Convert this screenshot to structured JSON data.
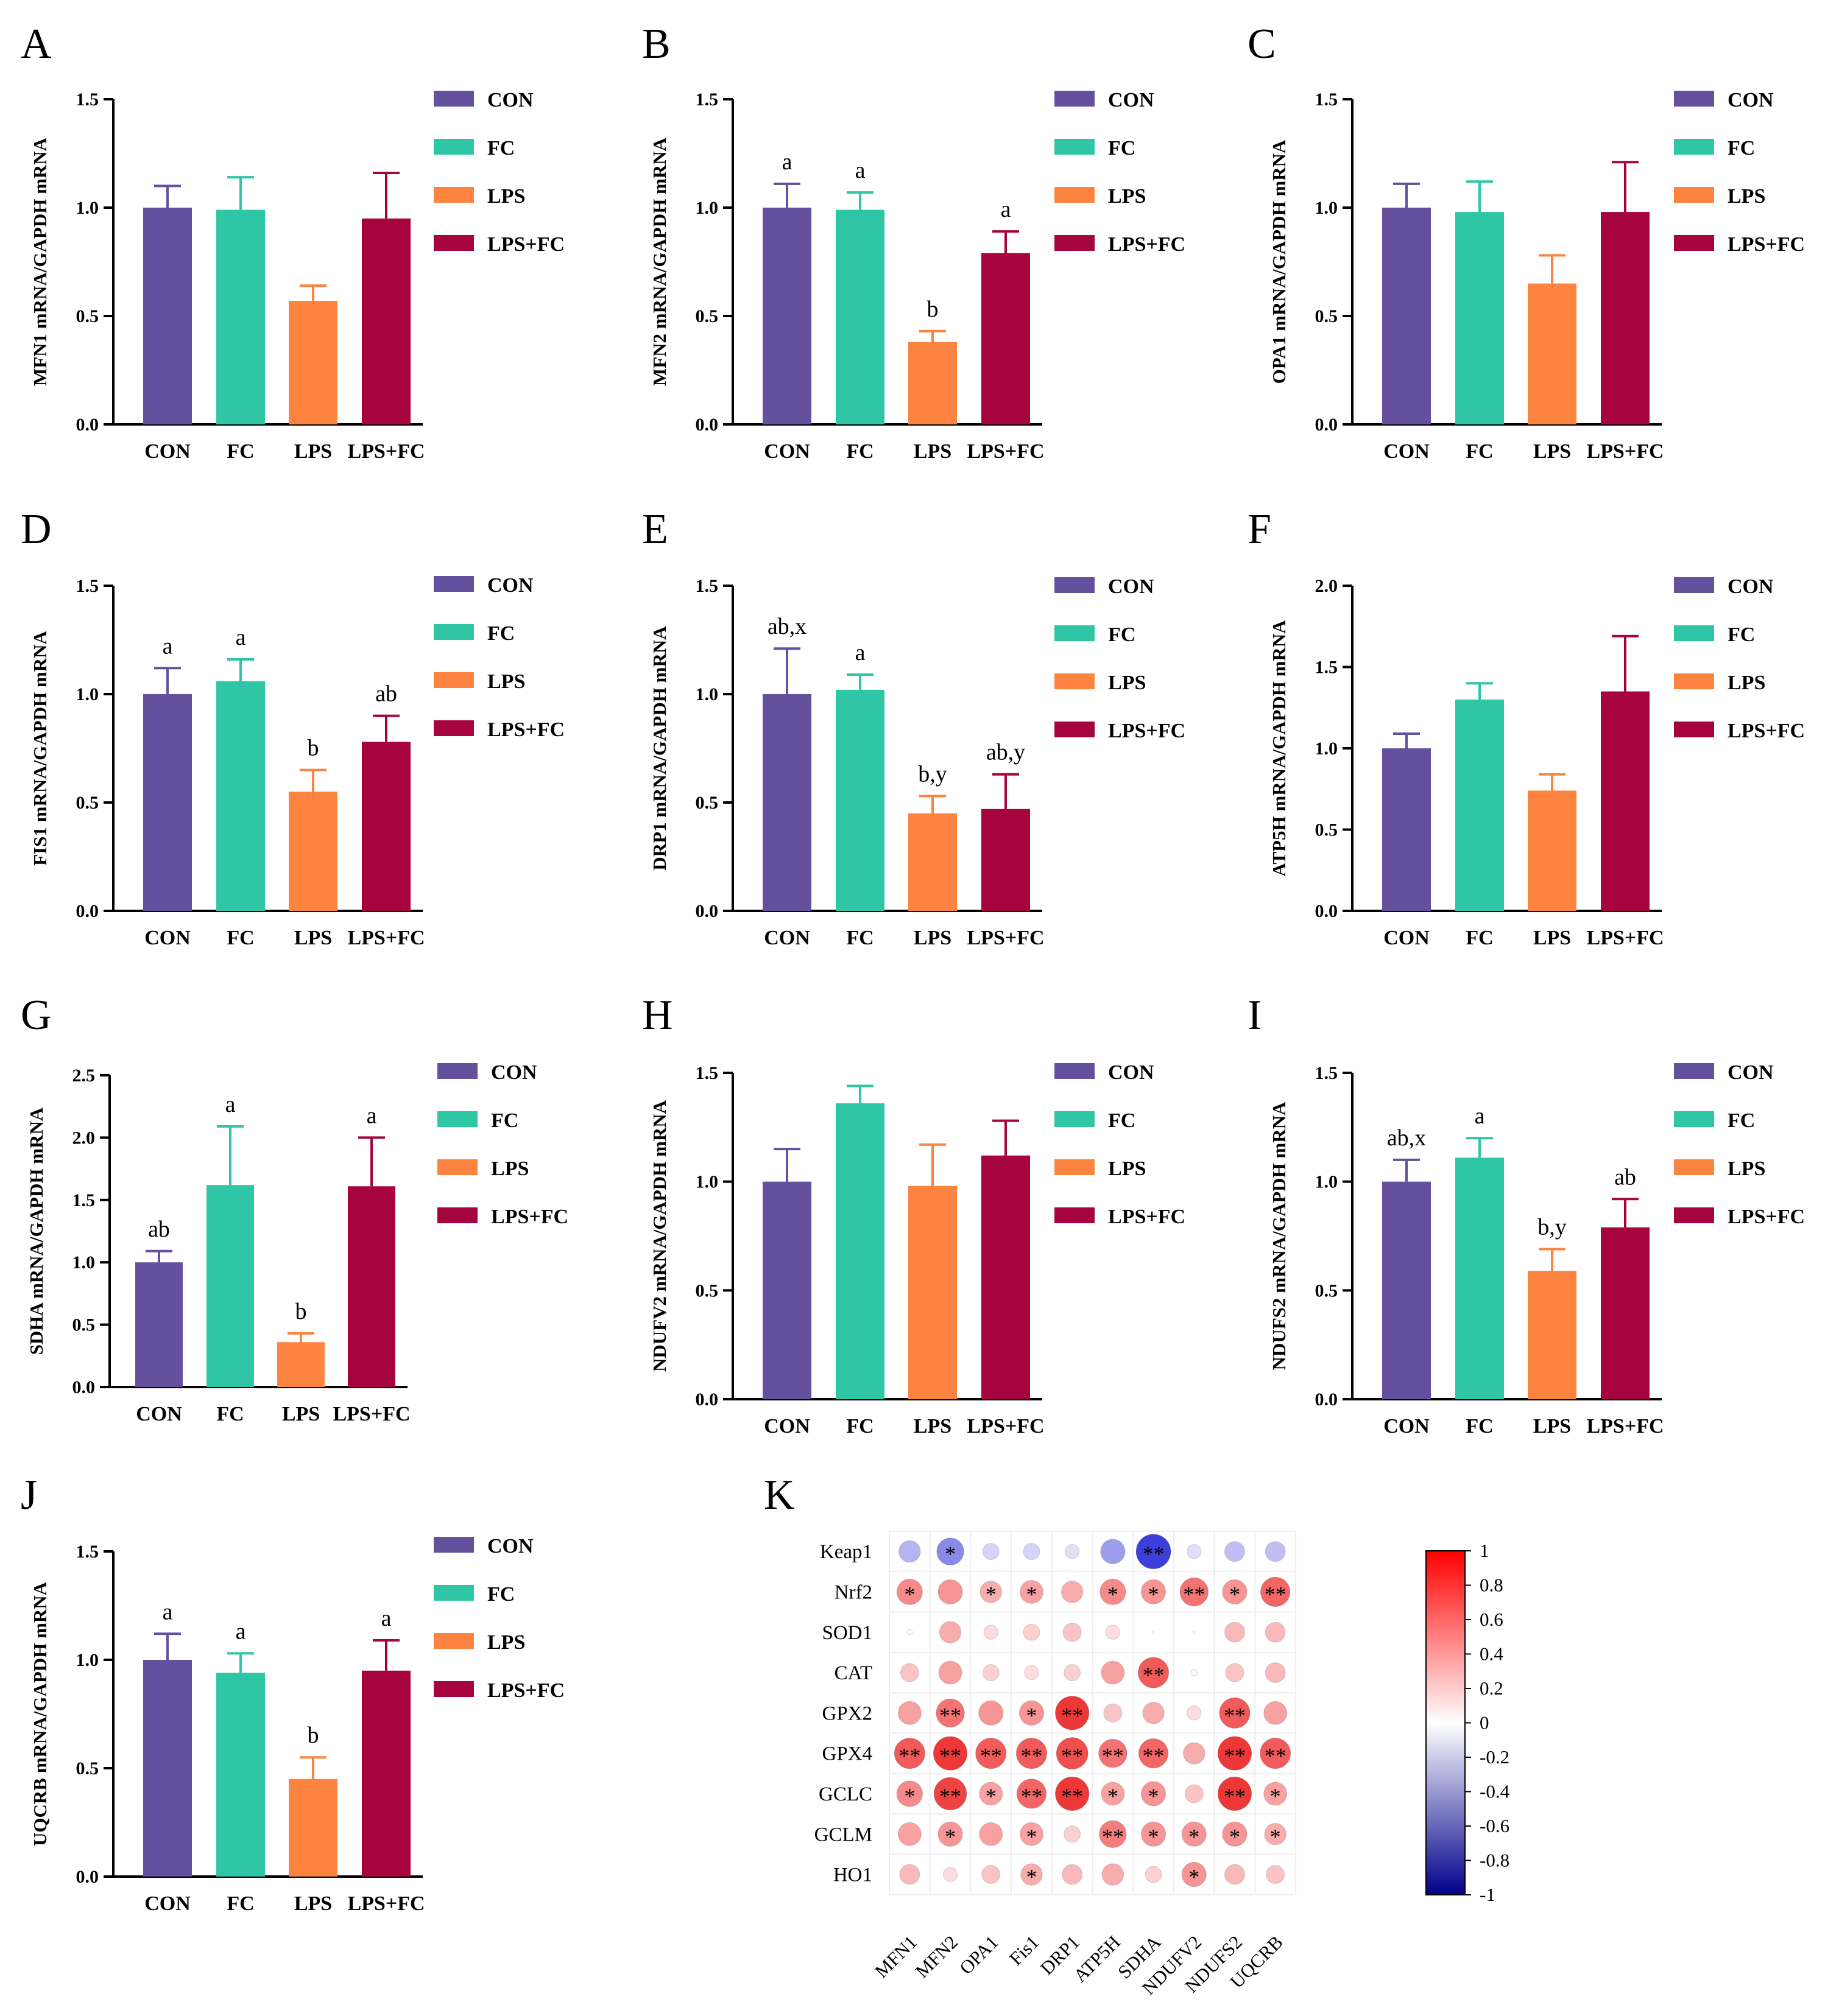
{
  "colors": {
    "CON": "#65509E",
    "FC": "#2EC6A5",
    "LPS": "#FC8440",
    "LPS+FC": "#A5043E",
    "axis": "#000000",
    "negative": "#1f2bdc",
    "positive": "#ef1c1c"
  },
  "chart_data": [
    {
      "panel": "A",
      "type": "bar",
      "categories": [
        "CON",
        "FC",
        "LPS",
        "LPS+FC"
      ],
      "values": [
        1.0,
        0.99,
        0.57,
        0.95
      ],
      "errors": [
        0.1,
        0.15,
        0.07,
        0.21
      ],
      "sig_labels": [
        "",
        "",
        "",
        ""
      ],
      "ylabel": "MFN1 mRNA/GAPDH mRNA",
      "ylim": [
        0,
        1.5
      ],
      "yticks": [
        "0.0",
        "0.5",
        "1.0",
        "1.5"
      ],
      "legend": [
        "CON",
        "FC",
        "LPS",
        "LPS+FC"
      ]
    },
    {
      "panel": "B",
      "type": "bar",
      "categories": [
        "CON",
        "FC",
        "LPS",
        "LPS+FC"
      ],
      "values": [
        1.0,
        0.99,
        0.38,
        0.79
      ],
      "errors": [
        0.11,
        0.08,
        0.05,
        0.1
      ],
      "sig_labels": [
        "a",
        "a",
        "b",
        "a"
      ],
      "ylabel": "MFN2 mRNA/GAPDH mRNA",
      "ylim": [
        0,
        1.5
      ],
      "yticks": [
        "0.0",
        "0.5",
        "1.0",
        "1.5"
      ],
      "legend": [
        "CON",
        "FC",
        "LPS",
        "LPS+FC"
      ]
    },
    {
      "panel": "C",
      "type": "bar",
      "categories": [
        "CON",
        "FC",
        "LPS",
        "LPS+FC"
      ],
      "values": [
        1.0,
        0.98,
        0.65,
        0.98
      ],
      "errors": [
        0.11,
        0.14,
        0.13,
        0.23
      ],
      "sig_labels": [
        "",
        "",
        "",
        ""
      ],
      "ylabel": "OPA1 mRNA/GAPDH mRNA",
      "ylim": [
        0,
        1.5
      ],
      "yticks": [
        "0.0",
        "0.5",
        "1.0",
        "1.5"
      ],
      "legend": [
        "CON",
        "FC",
        "LPS",
        "LPS+FC"
      ]
    },
    {
      "panel": "D",
      "type": "bar",
      "categories": [
        "CON",
        "FC",
        "LPS",
        "LPS+FC"
      ],
      "values": [
        1.0,
        1.06,
        0.55,
        0.78
      ],
      "errors": [
        0.12,
        0.1,
        0.1,
        0.12
      ],
      "sig_labels": [
        "a",
        "a",
        "b",
        "ab"
      ],
      "ylabel": "FIS1 mRNA/GAPDH mRNA",
      "ylim": [
        0,
        1.5
      ],
      "yticks": [
        "0.0",
        "0.5",
        "1.0",
        "1.5"
      ],
      "legend": [
        "CON",
        "FC",
        "LPS",
        "LPS+FC"
      ]
    },
    {
      "panel": "E",
      "type": "bar",
      "categories": [
        "CON",
        "FC",
        "LPS",
        "LPS+FC"
      ],
      "values": [
        1.0,
        1.02,
        0.45,
        0.47
      ],
      "errors": [
        0.21,
        0.07,
        0.08,
        0.16
      ],
      "sig_labels": [
        "ab,x",
        "a",
        "b,y",
        "ab,y"
      ],
      "ylabel": "DRP1 mRNA/GAPDH mRNA",
      "ylim": [
        0,
        1.5
      ],
      "yticks": [
        "0.0",
        "0.5",
        "1.0",
        "1.5"
      ],
      "legend": [
        "CON",
        "FC",
        "LPS",
        "LPS+FC"
      ]
    },
    {
      "panel": "F",
      "type": "bar",
      "categories": [
        "CON",
        "FC",
        "LPS",
        "LPS+FC"
      ],
      "values": [
        1.0,
        1.3,
        0.74,
        1.35
      ],
      "errors": [
        0.09,
        0.1,
        0.1,
        0.34
      ],
      "sig_labels": [
        "",
        "",
        "",
        ""
      ],
      "ylabel": "ATP5H mRNA/GAPDH mRNA",
      "ylim": [
        0,
        2.0
      ],
      "yticks": [
        "0.0",
        "0.5",
        "1.0",
        "1.5",
        "2.0"
      ],
      "legend": [
        "CON",
        "FC",
        "LPS",
        "LPS+FC"
      ]
    },
    {
      "panel": "G",
      "type": "bar",
      "categories": [
        "CON",
        "FC",
        "LPS",
        "LPS+FC"
      ],
      "values": [
        1.0,
        1.62,
        0.36,
        1.61
      ],
      "errors": [
        0.09,
        0.47,
        0.07,
        0.39
      ],
      "sig_labels": [
        "ab",
        "a",
        "b",
        "a"
      ],
      "ylabel": "SDHA mRNA/GAPDH mRNA",
      "ylim": [
        0,
        2.5
      ],
      "yticks": [
        "0.0",
        "0.5",
        "1.0",
        "1.5",
        "2.0",
        "2.5"
      ],
      "legend": [
        "CON",
        "FC",
        "LPS",
        "LPS+FC"
      ]
    },
    {
      "panel": "H",
      "type": "bar",
      "categories": [
        "CON",
        "FC",
        "LPS",
        "LPS+FC"
      ],
      "values": [
        1.0,
        1.36,
        0.98,
        1.12
      ],
      "errors": [
        0.15,
        0.08,
        0.19,
        0.16
      ],
      "sig_labels": [
        "",
        "",
        "",
        ""
      ],
      "ylabel": "NDUFV2 mRNA/GAPDH mRNA",
      "ylim": [
        0,
        1.5
      ],
      "yticks": [
        "0.0",
        "0.5",
        "1.0",
        "1.5"
      ],
      "legend": [
        "CON",
        "FC",
        "LPS",
        "LPS+FC"
      ]
    },
    {
      "panel": "I",
      "type": "bar",
      "categories": [
        "CON",
        "FC",
        "LPS",
        "LPS+FC"
      ],
      "values": [
        1.0,
        1.11,
        0.59,
        0.79
      ],
      "errors": [
        0.1,
        0.09,
        0.1,
        0.13
      ],
      "sig_labels": [
        "ab,x",
        "a",
        "b,y",
        "ab"
      ],
      "ylabel": "NDUFS2 mRNA/GAPDH mRNA",
      "ylim": [
        0,
        1.5
      ],
      "yticks": [
        "0.0",
        "0.5",
        "1.0",
        "1.5"
      ],
      "legend": [
        "CON",
        "FC",
        "LPS",
        "LPS+FC"
      ]
    },
    {
      "panel": "J",
      "type": "bar",
      "categories": [
        "CON",
        "FC",
        "LPS",
        "LPS+FC"
      ],
      "values": [
        1.0,
        0.94,
        0.45,
        0.95
      ],
      "errors": [
        0.12,
        0.09,
        0.1,
        0.14
      ],
      "sig_labels": [
        "a",
        "a",
        "b",
        "a"
      ],
      "ylabel": "UQCRB mRNA/GAPDH mRNA",
      "ylim": [
        0,
        1.5
      ],
      "yticks": [
        "0.0",
        "0.5",
        "1.0",
        "1.5"
      ],
      "legend": [
        "CON",
        "FC",
        "LPS",
        "LPS+FC"
      ]
    },
    {
      "panel": "K",
      "type": "heatmap",
      "rows": [
        "Keap1",
        "Nrf2",
        "SOD1",
        "CAT",
        "GPX2",
        "GPX4",
        "GCLC",
        "GCLM",
        "HO1"
      ],
      "columns": [
        "MFN1",
        "MFN2",
        "OPA1",
        "Fis1",
        "DRP1",
        "ATP5H",
        "SDHA",
        "NDUFV2",
        "NDUFS2",
        "UQCRB"
      ],
      "values": [
        [
          -0.35,
          -0.55,
          -0.2,
          -0.2,
          -0.15,
          -0.45,
          -0.9,
          -0.15,
          -0.3,
          -0.3
        ],
        [
          0.5,
          0.45,
          0.35,
          0.4,
          0.35,
          0.5,
          0.45,
          0.6,
          0.45,
          0.65
        ],
        [
          0.02,
          0.35,
          0.15,
          0.2,
          0.25,
          0.15,
          0.0,
          0.0,
          0.3,
          0.3
        ],
        [
          0.25,
          0.4,
          0.2,
          0.15,
          0.2,
          0.4,
          0.7,
          0.03,
          0.25,
          0.3
        ],
        [
          0.4,
          0.6,
          0.45,
          0.45,
          0.85,
          0.25,
          0.35,
          0.15,
          0.7,
          0.4
        ],
        [
          0.7,
          0.85,
          0.7,
          0.7,
          0.75,
          0.6,
          0.65,
          0.35,
          0.85,
          0.7
        ],
        [
          0.5,
          0.8,
          0.4,
          0.65,
          0.85,
          0.4,
          0.45,
          0.25,
          0.85,
          0.4
        ],
        [
          0.4,
          0.45,
          0.4,
          0.4,
          0.2,
          0.55,
          0.45,
          0.45,
          0.45,
          0.35
        ],
        [
          0.3,
          0.15,
          0.25,
          0.35,
          0.3,
          0.35,
          0.2,
          0.45,
          0.3,
          0.25
        ]
      ],
      "significance": [
        [
          "",
          "*",
          "",
          "",
          "",
          "",
          "**",
          "",
          "",
          ""
        ],
        [
          "*",
          "",
          "*",
          "*",
          "",
          "*",
          "*",
          "**",
          "*",
          "**"
        ],
        [
          "",
          "",
          "",
          "",
          "",
          "",
          "",
          "",
          "",
          ""
        ],
        [
          "",
          "",
          "",
          "",
          "",
          "",
          "**",
          "",
          "",
          ""
        ],
        [
          "",
          "**",
          "",
          "*",
          "**",
          "",
          "",
          "",
          "**",
          ""
        ],
        [
          "**",
          "**",
          "**",
          "**",
          "**",
          "**",
          "**",
          "",
          "**",
          "**"
        ],
        [
          "*",
          "**",
          "*",
          "**",
          "**",
          "*",
          "*",
          "",
          "**",
          "*"
        ],
        [
          "",
          "*",
          "",
          "*",
          "",
          "**",
          "*",
          "*",
          "*",
          "*"
        ],
        [
          "",
          "",
          "",
          "*",
          "",
          "",
          "",
          "*",
          "",
          ""
        ]
      ],
      "colorbar_range": [
        -1,
        1
      ],
      "colorbar_ticks": [
        "1",
        "0.8",
        "0.6",
        "0.4",
        "0.2",
        "0",
        "-0.2",
        "-0.4",
        "-0.6",
        "-0.8",
        "-1"
      ]
    }
  ]
}
